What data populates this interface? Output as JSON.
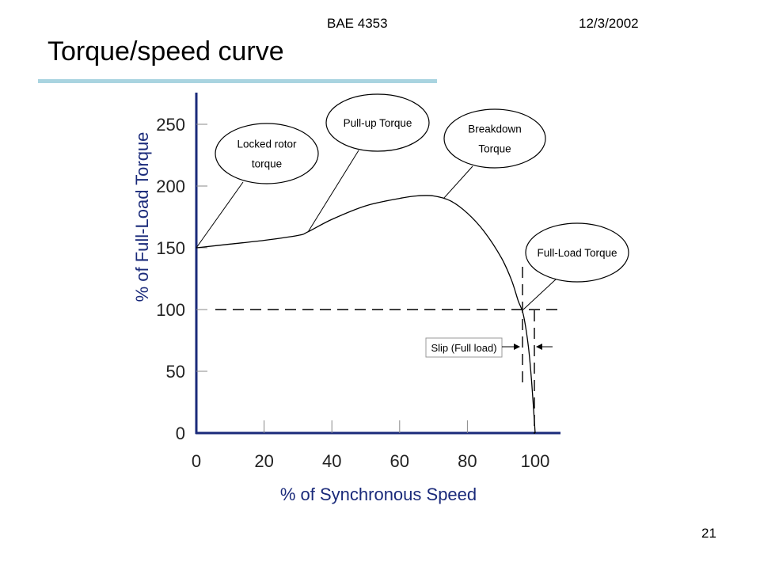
{
  "slide": {
    "course": "BAE 4353",
    "date": "12/3/2002",
    "title": "Torque/speed curve",
    "page_number": "21"
  },
  "colors": {
    "axis": "#1a2a7a",
    "curve": "#000000",
    "title_rule": "#a9d4e0"
  },
  "chart_data": {
    "type": "line",
    "xlabel": "% of Synchronous Speed",
    "ylabel": "% of Full-Load Torque",
    "xlim": [
      0,
      100
    ],
    "ylim": [
      0,
      250
    ],
    "xticks": [
      0,
      20,
      40,
      60,
      80,
      100
    ],
    "yticks": [
      0,
      50,
      100,
      150,
      200,
      250
    ],
    "grid": false,
    "series": [
      {
        "x": [
          0,
          10,
          20,
          30,
          33,
          40,
          50,
          60,
          65,
          70,
          75,
          80,
          85,
          90,
          93,
          95,
          96.5,
          98,
          99,
          100
        ],
        "values": [
          150,
          153,
          156,
          160,
          163,
          173,
          184,
          190,
          192,
          192,
          188,
          178,
          163,
          142,
          124,
          107,
          96,
          70,
          40,
          0
        ]
      }
    ],
    "reference_lines": {
      "full_load_torque": 100,
      "full_load_speed": 96.5
    },
    "annotations": [
      {
        "text_lines": [
          "Locked rotor",
          "torque"
        ],
        "x": 0,
        "y": 150
      },
      {
        "text_lines": [
          "Pull-up Torque"
        ],
        "x": 33,
        "y": 163
      },
      {
        "text_lines": [
          "Breakdown",
          "Torque"
        ],
        "x": 73,
        "y": 190
      },
      {
        "text_lines": [
          "Full-Load Torque"
        ],
        "x": 96.5,
        "y": 100
      }
    ],
    "slip_label": "Slip (Full load)"
  }
}
